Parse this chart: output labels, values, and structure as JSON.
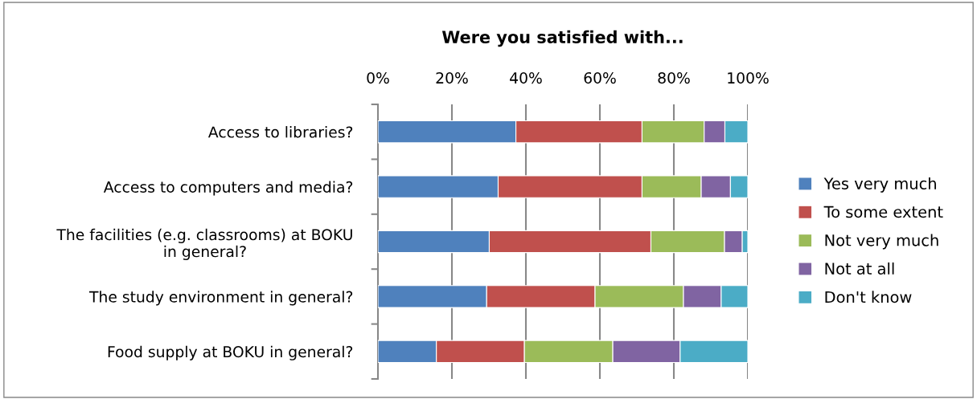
{
  "chart_data": {
    "type": "bar",
    "orientation": "horizontal",
    "stacked": true,
    "title": "Were you satisfied with...",
    "categories": [
      "Access to libraries?",
      "Access to computers and media?",
      "The facilities (e.g. classrooms) at BOKU\nin general?",
      "The study environment in general?",
      "Food supply at BOKU in general?"
    ],
    "series": [
      {
        "name": "Yes very much",
        "color": "#4f81bd",
        "values": [
          37.3,
          32.5,
          30.1,
          29.4,
          15.8
        ]
      },
      {
        "name": "To some extent",
        "color": "#c0504d",
        "values": [
          34.1,
          38.9,
          43.7,
          29.3,
          23.8
        ]
      },
      {
        "name": "Not very much",
        "color": "#9bbb59",
        "values": [
          16.8,
          16.0,
          19.9,
          23.9,
          23.9
        ]
      },
      {
        "name": "Not at all",
        "color": "#8064a2",
        "values": [
          5.6,
          7.9,
          4.8,
          10.2,
          18.2
        ]
      },
      {
        "name": "Don't know",
        "color": "#4bacc6",
        "values": [
          6.2,
          4.7,
          1.5,
          7.2,
          18.3
        ]
      }
    ],
    "xlim": [
      0,
      100
    ],
    "xticks": [
      {
        "value": 0,
        "label": "0%"
      },
      {
        "value": 20,
        "label": "20%"
      },
      {
        "value": 40,
        "label": "40%"
      },
      {
        "value": 60,
        "label": "60%"
      },
      {
        "value": 80,
        "label": "80%"
      },
      {
        "value": 100,
        "label": "100%"
      }
    ],
    "grid": "x",
    "legend": "right"
  }
}
